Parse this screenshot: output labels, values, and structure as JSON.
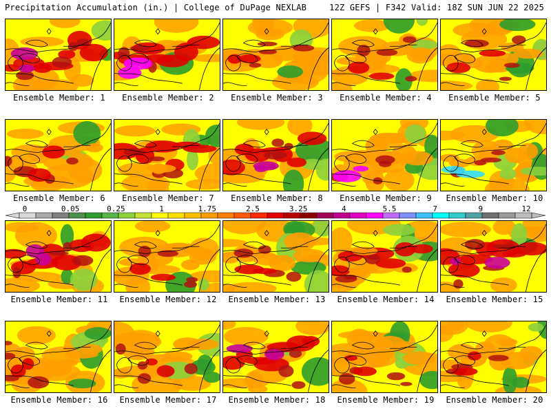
{
  "header": {
    "title_left": "Precipitation Accumulation (in.) | College of DuPage NEXLAB",
    "title_right": "12Z GEFS | F342 Valid: 18Z SUN JUN 22 2025"
  },
  "panels": [
    {
      "label": "Ensemble Member: 1"
    },
    {
      "label": "Ensemble Member: 2"
    },
    {
      "label": "Ensemble Member: 3"
    },
    {
      "label": "Ensemble Member: 4"
    },
    {
      "label": "Ensemble Member: 5"
    },
    {
      "label": "Ensemble Member: 6"
    },
    {
      "label": "Ensemble Member: 7"
    },
    {
      "label": "Ensemble Member: 8"
    },
    {
      "label": "Ensemble Member: 9"
    },
    {
      "label": "Ensemble Member: 10"
    },
    {
      "label": "Ensemble Member: 11"
    },
    {
      "label": "Ensemble Member: 12"
    },
    {
      "label": "Ensemble Member: 13"
    },
    {
      "label": "Ensemble Member: 14"
    },
    {
      "label": "Ensemble Member: 15"
    },
    {
      "label": "Ensemble Member: 16"
    },
    {
      "label": "Ensemble Member: 17"
    },
    {
      "label": "Ensemble Member: 18"
    },
    {
      "label": "Ensemble Member: 19"
    },
    {
      "label": "Ensemble Member: 20"
    }
  ],
  "colorbar": {
    "labels": [
      "0",
      "0.05",
      "0.25",
      "1",
      "1.75",
      "2.5",
      "3.25",
      "4",
      "5.5",
      "7",
      "9",
      "12"
    ],
    "colors": [
      "#d9d9d9",
      "#a9a9a9",
      "#7f7f7f",
      "#4e8f4e",
      "#2e9d2e",
      "#58b447",
      "#8cd03c",
      "#c6e234",
      "#ffff00",
      "#ffe000",
      "#ffbf00",
      "#ff9f00",
      "#ff7f00",
      "#ff5a00",
      "#ff2a00",
      "#e00000",
      "#b80000",
      "#8e0000",
      "#a0005a",
      "#c0008f",
      "#e000c0",
      "#ff00ff",
      "#c06bff",
      "#7f8fff",
      "#3fbfff",
      "#00ffff",
      "#33cccc",
      "#4fa3a3",
      "#6f6f6f",
      "#999999",
      "#bdbdbd"
    ]
  },
  "palette": {
    "dry": "#2e9d2e",
    "light": "#8cd03c",
    "yellow": "#ffff00",
    "orange": "#ff9f00",
    "red": "#e00000",
    "darkred": "#b01010",
    "magenta": "#c8009a",
    "pink": "#ff00ff",
    "cyan": "#33ddff"
  },
  "map_symbols": {
    "station_marker": "diamond"
  }
}
